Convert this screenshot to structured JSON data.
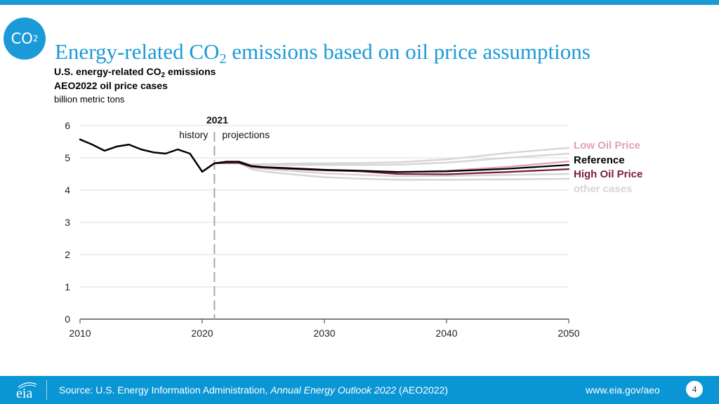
{
  "header": {
    "badge_main": "CO",
    "badge_sub": "2",
    "title_part1": "Energy-related CO",
    "title_sub": "2",
    "title_part2": " emissions based on oil price assumptions",
    "subtitle_part1": "U.S. energy-related CO",
    "subtitle_sub": "2",
    "subtitle_part2": " emissions",
    "subtitle2": "AEO2022 oil price cases",
    "units": "billion metric tons"
  },
  "chart_data": {
    "type": "line",
    "title": "U.S. energy-related CO2 emissions, AEO2022 oil price cases",
    "ylabel": "billion metric tons",
    "xlabel": "",
    "xlim": [
      2010,
      2050
    ],
    "ylim": [
      0,
      6
    ],
    "x_ticks": [
      "2010",
      "2020",
      "2030",
      "2040",
      "2050"
    ],
    "y_ticks": [
      "0",
      "1",
      "2",
      "3",
      "4",
      "5",
      "6"
    ],
    "grid": "horizontal",
    "divider": {
      "year": 2021,
      "label": "2021",
      "left_label": "history",
      "right_label": "projections"
    },
    "legend_placement": "right",
    "history": {
      "name": "History",
      "color": "#000000",
      "x": [
        2010,
        2011,
        2012,
        2013,
        2014,
        2015,
        2016,
        2017,
        2018,
        2019,
        2020,
        2021
      ],
      "values": [
        5.57,
        5.41,
        5.22,
        5.35,
        5.41,
        5.26,
        5.17,
        5.13,
        5.26,
        5.13,
        4.57,
        4.83
      ]
    },
    "projection_x": [
      2021,
      2022,
      2023,
      2024,
      2025,
      2027,
      2030,
      2033,
      2036,
      2040,
      2045,
      2050
    ],
    "series": [
      {
        "name": "Low Oil Price",
        "color": "#e3a0b0",
        "values": [
          4.83,
          4.86,
          4.85,
          4.72,
          4.7,
          4.66,
          4.62,
          4.59,
          4.55,
          4.6,
          4.72,
          4.89
        ]
      },
      {
        "name": "Reference",
        "color": "#000000",
        "values": [
          4.83,
          4.88,
          4.88,
          4.75,
          4.71,
          4.68,
          4.63,
          4.6,
          4.56,
          4.58,
          4.66,
          4.78
        ]
      },
      {
        "name": "High Oil Price",
        "color": "#7b1e3a",
        "values": [
          4.83,
          4.84,
          4.84,
          4.73,
          4.7,
          4.66,
          4.61,
          4.58,
          4.5,
          4.49,
          4.56,
          4.65
        ]
      }
    ],
    "other_cases": {
      "name": "other cases",
      "color": "#d6d6d6",
      "series": [
        [
          4.83,
          4.88,
          4.88,
          4.8,
          4.8,
          4.82,
          4.83,
          4.84,
          4.86,
          4.95,
          5.15,
          5.31
        ],
        [
          4.83,
          4.88,
          4.87,
          4.78,
          4.77,
          4.78,
          4.78,
          4.78,
          4.79,
          4.85,
          5.0,
          5.13
        ],
        [
          4.83,
          4.87,
          4.86,
          4.7,
          4.66,
          4.6,
          4.52,
          4.47,
          4.43,
          4.44,
          4.47,
          4.5
        ],
        [
          4.83,
          4.86,
          4.85,
          4.65,
          4.58,
          4.5,
          4.4,
          4.35,
          4.32,
          4.32,
          4.33,
          4.35
        ]
      ]
    },
    "legend": [
      {
        "label": "Low Oil Price",
        "color": "#e3a0b0"
      },
      {
        "label": "Reference",
        "color": "#000000"
      },
      {
        "label": "High Oil Price",
        "color": "#7b1e3a"
      },
      {
        "label": "other cases",
        "color": "#d6d6d6"
      }
    ]
  },
  "footer": {
    "logo_text": "eia",
    "source_prefix": "Source: U.S. Energy Information Administration, ",
    "source_italic": "Annual Energy Outlook 2022",
    "source_suffix": " (AEO2022)",
    "website": "www.eia.gov/aeo",
    "page_number": "4"
  }
}
